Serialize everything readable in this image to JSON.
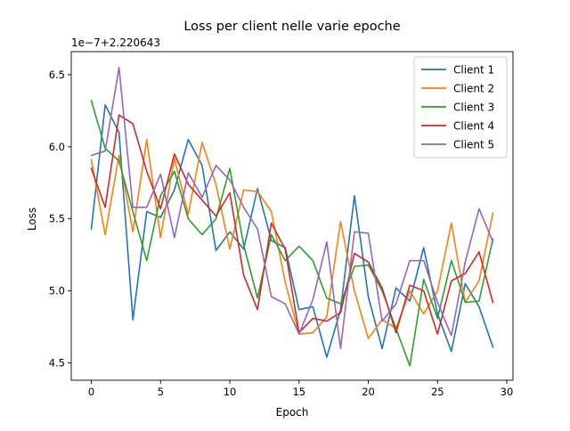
{
  "chart_data": {
    "type": "line",
    "title": "Loss per client nelle varie epoche",
    "xlabel": "Epoch",
    "ylabel": "Loss",
    "offset_label": "1e−7+2.220643",
    "x": [
      0,
      1,
      2,
      3,
      4,
      5,
      6,
      7,
      8,
      9,
      10,
      11,
      12,
      13,
      14,
      15,
      16,
      17,
      18,
      19,
      20,
      21,
      22,
      23,
      24,
      25,
      26,
      27,
      28,
      29
    ],
    "xlim": [
      -1.45,
      30.45
    ],
    "ylim": [
      4.38,
      6.66
    ],
    "xticks": [
      0,
      5,
      10,
      15,
      20,
      25,
      30
    ],
    "xtick_labels": [
      "0",
      "5",
      "10",
      "15",
      "20",
      "25",
      "30"
    ],
    "yticks": [
      4.5,
      5.0,
      5.5,
      6.0,
      6.5
    ],
    "ytick_labels": [
      "4.5",
      "5.0",
      "5.5",
      "6.0",
      "6.5"
    ],
    "grid": false,
    "legend_position": "top-right",
    "series": [
      {
        "name": "Client 1",
        "color": "#1f77b4",
        "values": [
          5.43,
          6.29,
          6.1,
          4.8,
          5.55,
          5.51,
          5.7,
          6.05,
          5.87,
          5.28,
          5.41,
          5.29,
          5.71,
          5.35,
          5.3,
          4.87,
          4.89,
          4.54,
          4.87,
          5.66,
          4.96,
          4.6,
          5.02,
          4.93,
          5.3,
          4.84,
          4.58,
          5.05,
          4.89,
          4.61
        ]
      },
      {
        "name": "Client 2",
        "color": "#ff7f0e",
        "values": [
          5.91,
          5.39,
          5.94,
          5.41,
          6.05,
          5.37,
          5.92,
          5.53,
          6.03,
          5.74,
          5.29,
          5.7,
          5.69,
          5.55,
          5.06,
          4.7,
          4.71,
          4.82,
          5.48,
          5.0,
          4.67,
          4.8,
          4.74,
          5.0,
          4.84,
          5.0,
          5.47,
          4.92,
          5.07,
          5.54
        ]
      },
      {
        "name": "Client 3",
        "color": "#2ca02c",
        "values": [
          6.32,
          5.99,
          5.9,
          5.55,
          5.21,
          5.66,
          5.83,
          5.5,
          5.39,
          5.5,
          5.85,
          5.32,
          4.95,
          5.39,
          5.21,
          5.31,
          5.21,
          4.95,
          4.91,
          5.17,
          5.18,
          5.0,
          4.74,
          4.48,
          5.08,
          4.81,
          5.21,
          4.92,
          4.93,
          5.36
        ]
      },
      {
        "name": "Client 4",
        "color": "#d62728",
        "values": [
          5.85,
          5.58,
          6.22,
          6.16,
          5.83,
          5.57,
          5.95,
          5.74,
          5.63,
          5.52,
          5.68,
          5.11,
          4.87,
          5.47,
          5.29,
          4.71,
          4.81,
          4.79,
          4.85,
          5.26,
          5.2,
          5.02,
          4.71,
          5.04,
          5.0,
          4.7,
          5.07,
          5.12,
          5.27,
          4.92
        ]
      },
      {
        "name": "Client 5",
        "color": "#9467bd",
        "values": [
          5.94,
          5.97,
          6.55,
          5.58,
          5.58,
          5.81,
          5.37,
          5.82,
          5.65,
          5.87,
          5.77,
          5.58,
          5.43,
          4.96,
          4.91,
          4.7,
          4.94,
          5.34,
          4.6,
          5.41,
          5.4,
          4.79,
          4.91,
          5.21,
          5.21,
          4.92,
          4.69,
          5.2,
          5.57,
          5.34
        ]
      }
    ]
  }
}
